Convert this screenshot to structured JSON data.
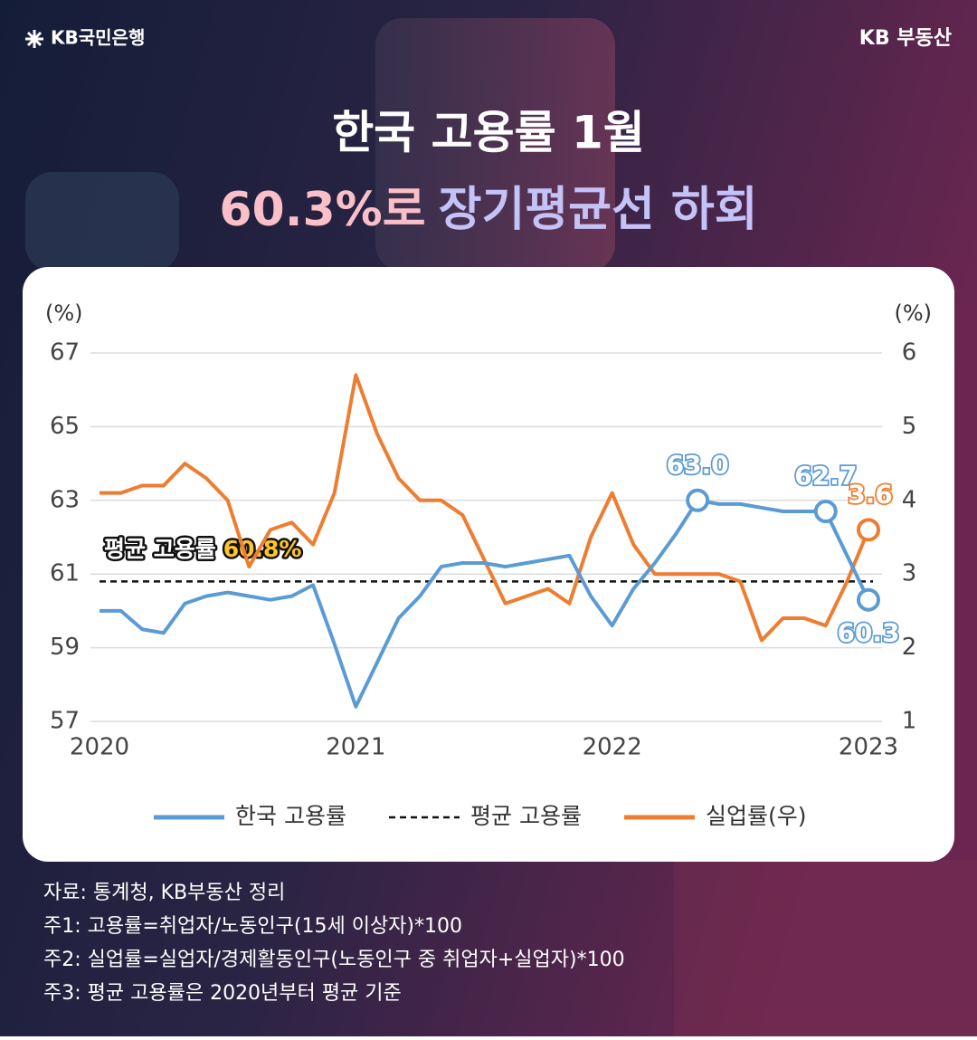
{
  "header": {
    "brand_left": "KB국민은행",
    "brand_right": "KB 부동산",
    "title_line1": "한국 고용률 1월",
    "title_highlight": "60.3%로",
    "title_rest": "장기평균선 하회"
  },
  "chart_data": {
    "type": "line",
    "categories": [
      "2020",
      null,
      null,
      null,
      null,
      null,
      null,
      null,
      null,
      null,
      null,
      null,
      "2021",
      null,
      null,
      null,
      null,
      null,
      null,
      null,
      null,
      null,
      null,
      null,
      "2022",
      null,
      null,
      null,
      null,
      null,
      null,
      null,
      null,
      null,
      null,
      null,
      "2023"
    ],
    "ylabel": "(%)",
    "y2label": "(%)",
    "ylim": [
      57,
      67
    ],
    "yticks": [
      57,
      59,
      61,
      63,
      65,
      67
    ],
    "y2lim": [
      1,
      6
    ],
    "y2ticks": [
      1,
      2,
      3,
      4,
      5,
      6
    ],
    "grid": true,
    "series": [
      {
        "name": "한국 고용률",
        "color": "#5b9bd5",
        "values": [
          60.0,
          60.0,
          59.5,
          59.4,
          60.2,
          60.4,
          60.5,
          60.4,
          60.3,
          60.4,
          60.7,
          59.1,
          57.4,
          58.6,
          59.8,
          60.4,
          61.2,
          61.3,
          61.3,
          61.2,
          61.3,
          61.4,
          61.5,
          60.4,
          59.6,
          60.6,
          61.3,
          62.1,
          63.0,
          62.9,
          62.9,
          62.8,
          62.7,
          62.7,
          62.7,
          61.5,
          60.3
        ],
        "value_labels": [
          null,
          null,
          null,
          null,
          null,
          null,
          null,
          null,
          null,
          null,
          null,
          null,
          null,
          null,
          null,
          null,
          null,
          null,
          null,
          null,
          null,
          null,
          null,
          null,
          null,
          null,
          null,
          null,
          "63.0",
          null,
          null,
          null,
          null,
          null,
          "62.7",
          null,
          "60.3"
        ]
      },
      {
        "name": "실업률(우)",
        "color": "#ed7d31",
        "axis": "y2",
        "values": [
          4.1,
          4.1,
          4.2,
          4.2,
          4.5,
          4.3,
          4.0,
          3.1,
          3.6,
          3.7,
          3.4,
          4.1,
          5.7,
          4.9,
          4.3,
          4.0,
          4.0,
          3.8,
          3.2,
          2.6,
          2.7,
          2.8,
          2.6,
          3.5,
          4.1,
          3.4,
          3.0,
          3.0,
          3.0,
          3.0,
          2.9,
          2.1,
          2.4,
          2.4,
          2.3,
          2.9,
          3.6
        ],
        "value_labels": [
          null,
          null,
          null,
          null,
          null,
          null,
          null,
          null,
          null,
          null,
          null,
          null,
          null,
          null,
          null,
          null,
          null,
          null,
          null,
          null,
          null,
          null,
          null,
          null,
          null,
          null,
          null,
          null,
          null,
          null,
          null,
          null,
          null,
          null,
          null,
          null,
          "3.6"
        ]
      }
    ],
    "average": {
      "name": "평균 고용률",
      "value": 60.8,
      "label": "60.8%"
    }
  },
  "footer": {
    "notes": [
      "자료: 통계청, KB부동산 정리",
      "주1: 고용률=취업자/노동인구(15세 이상자)*100",
      "주2: 실업률=실업자/경제활동인구(노동인구 중 취업자+실업자)*100",
      "주3: 평균 고용률은 2020년부터 평균 기준"
    ]
  }
}
